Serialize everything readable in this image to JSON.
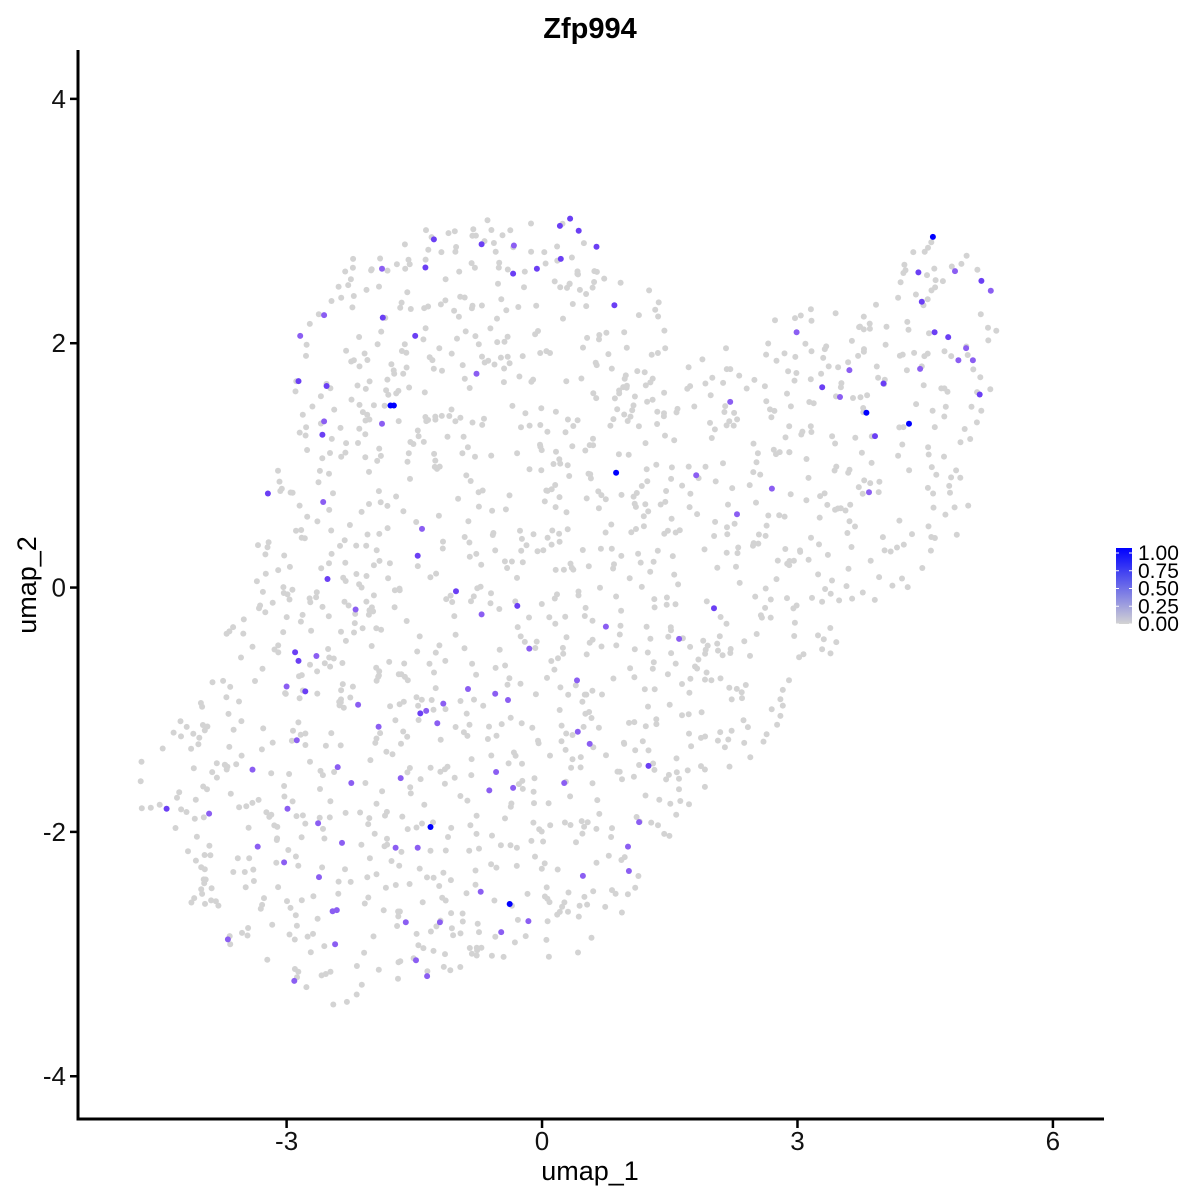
{
  "chart_data": {
    "type": "scatter",
    "title": "Zfp994",
    "xlabel": "umap_1",
    "ylabel": "umap_2",
    "xlim": [
      -5.45,
      6.6
    ],
    "ylim": [
      -4.35,
      4.4
    ],
    "x_ticks": [
      -3,
      0,
      3,
      6
    ],
    "y_ticks": [
      -4,
      -2,
      0,
      2,
      4
    ],
    "x_tick_labels": [
      "-3",
      "0",
      "3",
      "6"
    ],
    "y_tick_labels": [
      "-4",
      "-2",
      "0",
      "2",
      "4"
    ],
    "grid": false,
    "legend": {
      "placement": "right",
      "type": "colorbar",
      "range": [
        0,
        1
      ],
      "ticks": [
        "1.00",
        "0.75",
        "0.50",
        "0.25",
        "0.00"
      ],
      "low_color": "#d3d3d3",
      "high_color": "#0000ff"
    },
    "colors": {
      "background_points": "#d3d3d3",
      "max_expression": "#0000ff"
    },
    "point_cloud": {
      "description_values_estimated": true,
      "n_background_points": 1500,
      "expression": 0
    },
    "expressing_points": [
      {
        "x": 4.59,
        "y": 2.87,
        "v": 1.0
      },
      {
        "x": -1.74,
        "y": 1.49,
        "v": 1.0
      },
      {
        "x": -1.78,
        "y": 1.49,
        "v": 1.0
      },
      {
        "x": 0.87,
        "y": 0.94,
        "v": 0.95
      },
      {
        "x": 3.81,
        "y": 1.43,
        "v": 1.0
      },
      {
        "x": 4.31,
        "y": 1.34,
        "v": 0.95
      },
      {
        "x": -1.31,
        "y": -1.96,
        "v": 0.95
      },
      {
        "x": -0.38,
        "y": -2.59,
        "v": 1.0
      },
      {
        "x": 0.33,
        "y": 3.02,
        "v": 0.7
      },
      {
        "x": 0.21,
        "y": 2.96,
        "v": 0.6
      },
      {
        "x": 0.43,
        "y": 2.92,
        "v": 0.7
      },
      {
        "x": -1.27,
        "y": 2.85,
        "v": 0.65
      },
      {
        "x": -0.71,
        "y": 2.81,
        "v": 0.6
      },
      {
        "x": -0.33,
        "y": 2.8,
        "v": 0.55
      },
      {
        "x": 0.64,
        "y": 2.79,
        "v": 0.6
      },
      {
        "x": 0.22,
        "y": 2.69,
        "v": 0.6
      },
      {
        "x": -1.37,
        "y": 2.62,
        "v": 0.6
      },
      {
        "x": -1.88,
        "y": 2.61,
        "v": 0.55
      },
      {
        "x": -0.06,
        "y": 2.61,
        "v": 0.6
      },
      {
        "x": -0.34,
        "y": 2.57,
        "v": 0.6
      },
      {
        "x": 0.85,
        "y": 2.31,
        "v": 0.65
      },
      {
        "x": -2.56,
        "y": 2.23,
        "v": 0.55
      },
      {
        "x": -1.87,
        "y": 2.21,
        "v": 0.6
      },
      {
        "x": -1.49,
        "y": 2.06,
        "v": 0.6
      },
      {
        "x": -2.84,
        "y": 2.06,
        "v": 0.55
      },
      {
        "x": -0.77,
        "y": 1.75,
        "v": 0.55
      },
      {
        "x": -2.86,
        "y": 1.69,
        "v": 0.65
      },
      {
        "x": -2.53,
        "y": 1.65,
        "v": 0.6
      },
      {
        "x": -2.56,
        "y": 1.36,
        "v": 0.55
      },
      {
        "x": -1.88,
        "y": 1.34,
        "v": 0.55
      },
      {
        "x": -2.58,
        "y": 1.25,
        "v": 0.6
      },
      {
        "x": -3.22,
        "y": 0.77,
        "v": 0.65
      },
      {
        "x": -2.57,
        "y": 0.7,
        "v": 0.55
      },
      {
        "x": -1.41,
        "y": 0.48,
        "v": 0.55
      },
      {
        "x": -1.46,
        "y": 0.26,
        "v": 0.6
      },
      {
        "x": -2.52,
        "y": 0.07,
        "v": 0.6
      },
      {
        "x": -1.01,
        "y": -0.03,
        "v": 0.6
      },
      {
        "x": -0.29,
        "y": -0.15,
        "v": 0.6
      },
      {
        "x": -2.19,
        "y": -0.18,
        "v": 0.55
      },
      {
        "x": -0.71,
        "y": -0.22,
        "v": 0.55
      },
      {
        "x": 0.75,
        "y": -0.32,
        "v": 0.5
      },
      {
        "x": -0.15,
        "y": -0.5,
        "v": 0.55
      },
      {
        "x": -2.65,
        "y": -0.56,
        "v": 0.55
      },
      {
        "x": -2.9,
        "y": -0.53,
        "v": 0.6
      },
      {
        "x": -2.86,
        "y": -0.6,
        "v": 0.6
      },
      {
        "x": 2.02,
        "y": -0.17,
        "v": 0.65
      },
      {
        "x": 1.61,
        "y": -0.42,
        "v": 0.55
      },
      {
        "x": 3.5,
        "y": 1.56,
        "v": 0.55
      },
      {
        "x": 3.29,
        "y": 1.64,
        "v": 0.6
      },
      {
        "x": 4.01,
        "y": 1.67,
        "v": 0.6
      },
      {
        "x": 3.61,
        "y": 1.78,
        "v": 0.55
      },
      {
        "x": 4.44,
        "y": 1.79,
        "v": 0.55
      },
      {
        "x": 3.91,
        "y": 1.24,
        "v": 0.6
      },
      {
        "x": 3.84,
        "y": 0.78,
        "v": 0.55
      },
      {
        "x": 2.7,
        "y": 0.81,
        "v": 0.5
      },
      {
        "x": 2.21,
        "y": 1.52,
        "v": 0.55
      },
      {
        "x": 2.99,
        "y": 2.09,
        "v": 0.55
      },
      {
        "x": 4.46,
        "y": 2.34,
        "v": 0.6
      },
      {
        "x": 4.42,
        "y": 2.58,
        "v": 0.6
      },
      {
        "x": 4.85,
        "y": 2.59,
        "v": 0.55
      },
      {
        "x": 5.16,
        "y": 2.51,
        "v": 0.6
      },
      {
        "x": 5.27,
        "y": 2.43,
        "v": 0.55
      },
      {
        "x": 4.61,
        "y": 2.09,
        "v": 0.6
      },
      {
        "x": 4.77,
        "y": 2.05,
        "v": 0.6
      },
      {
        "x": 4.98,
        "y": 1.96,
        "v": 0.55
      },
      {
        "x": 4.89,
        "y": 1.86,
        "v": 0.55
      },
      {
        "x": 5.06,
        "y": 1.86,
        "v": 0.55
      },
      {
        "x": 5.14,
        "y": 1.58,
        "v": 0.6
      },
      {
        "x": 1.81,
        "y": 0.92,
        "v": 0.55
      },
      {
        "x": 2.29,
        "y": 0.6,
        "v": 0.55
      },
      {
        "x": -3.0,
        "y": -0.81,
        "v": 0.55
      },
      {
        "x": -2.78,
        "y": -0.85,
        "v": 0.6
      },
      {
        "x": -0.87,
        "y": -0.83,
        "v": 0.55
      },
      {
        "x": -0.55,
        "y": -0.87,
        "v": 0.55
      },
      {
        "x": -0.4,
        "y": -0.92,
        "v": 0.5
      },
      {
        "x": -1.16,
        "y": -0.95,
        "v": 0.55
      },
      {
        "x": -2.16,
        "y": -0.96,
        "v": 0.55
      },
      {
        "x": -1.43,
        "y": -1.03,
        "v": 0.6
      },
      {
        "x": -1.36,
        "y": -1.01,
        "v": 0.55
      },
      {
        "x": -1.23,
        "y": -1.11,
        "v": 0.55
      },
      {
        "x": 0.41,
        "y": -0.76,
        "v": 0.55
      },
      {
        "x": -1.92,
        "y": -1.14,
        "v": 0.55
      },
      {
        "x": 0.42,
        "y": -1.18,
        "v": 0.5
      },
      {
        "x": 0.56,
        "y": -1.28,
        "v": 0.55
      },
      {
        "x": -2.88,
        "y": -1.25,
        "v": 0.55
      },
      {
        "x": 1.25,
        "y": -1.46,
        "v": 0.6
      },
      {
        "x": -3.4,
        "y": -1.49,
        "v": 0.55
      },
      {
        "x": -2.4,
        "y": -1.47,
        "v": 0.5
      },
      {
        "x": -0.54,
        "y": -1.51,
        "v": 0.55
      },
      {
        "x": -1.66,
        "y": -1.56,
        "v": 0.55
      },
      {
        "x": -2.24,
        "y": -1.6,
        "v": 0.55
      },
      {
        "x": 0.26,
        "y": -1.6,
        "v": 0.5
      },
      {
        "x": -0.62,
        "y": -1.66,
        "v": 0.55
      },
      {
        "x": -0.34,
        "y": -1.64,
        "v": 0.55
      },
      {
        "x": -4.41,
        "y": -1.81,
        "v": 0.6
      },
      {
        "x": -2.99,
        "y": -1.81,
        "v": 0.55
      },
      {
        "x": -3.91,
        "y": -1.85,
        "v": 0.55
      },
      {
        "x": -2.63,
        "y": -1.93,
        "v": 0.5
      },
      {
        "x": 1.14,
        "y": -1.92,
        "v": 0.5
      },
      {
        "x": -2.35,
        "y": -2.09,
        "v": 0.55
      },
      {
        "x": -1.72,
        "y": -2.13,
        "v": 0.55
      },
      {
        "x": -1.46,
        "y": -2.13,
        "v": 0.5
      },
      {
        "x": 1.01,
        "y": -2.12,
        "v": 0.55
      },
      {
        "x": -3.34,
        "y": -2.12,
        "v": 0.5
      },
      {
        "x": -3.03,
        "y": -2.25,
        "v": 0.55
      },
      {
        "x": 1.02,
        "y": -2.32,
        "v": 0.55
      },
      {
        "x": 0.48,
        "y": -2.36,
        "v": 0.55
      },
      {
        "x": -2.62,
        "y": -2.37,
        "v": 0.55
      },
      {
        "x": -0.72,
        "y": -2.49,
        "v": 0.55
      },
      {
        "x": -2.41,
        "y": -2.64,
        "v": 0.55
      },
      {
        "x": -2.46,
        "y": -2.65,
        "v": 0.55
      },
      {
        "x": -0.16,
        "y": -2.73,
        "v": 0.55
      },
      {
        "x": -1.6,
        "y": -2.74,
        "v": 0.55
      },
      {
        "x": -1.2,
        "y": -2.74,
        "v": 0.55
      },
      {
        "x": -0.48,
        "y": -2.82,
        "v": 0.5
      },
      {
        "x": -3.69,
        "y": -2.88,
        "v": 0.55
      },
      {
        "x": -2.43,
        "y": -2.92,
        "v": 0.55
      },
      {
        "x": -1.48,
        "y": -3.05,
        "v": 0.55
      },
      {
        "x": -1.35,
        "y": -3.18,
        "v": 0.55
      },
      {
        "x": -2.91,
        "y": -3.22,
        "v": 0.55
      }
    ]
  }
}
